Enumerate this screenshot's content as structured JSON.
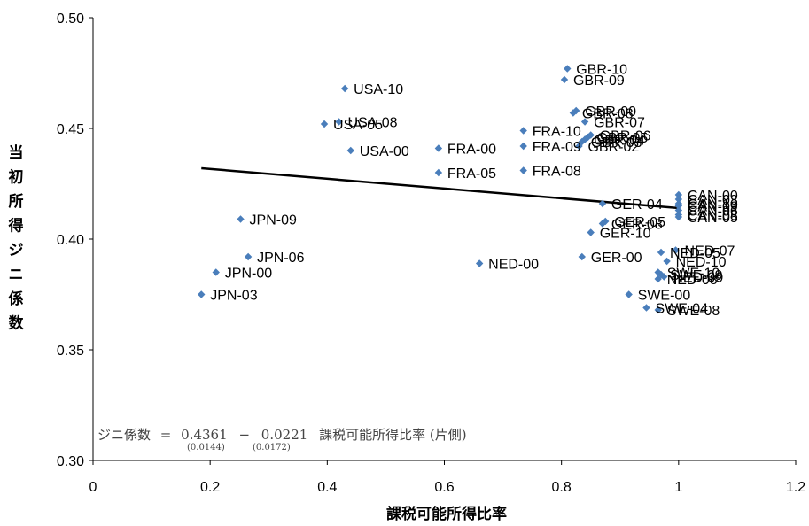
{
  "chart_data": {
    "type": "scatter",
    "xlabel": "課税可能所得比率",
    "ylabel": "当初所得ジニ係数",
    "xlim": [
      0,
      1.2
    ],
    "ylim": [
      0.3,
      0.5
    ],
    "x_ticks": [
      "0",
      "0.2",
      "0.4",
      "0.6",
      "0.8",
      "1",
      "1.2"
    ],
    "y_ticks": [
      "0.30",
      "0.35",
      "0.40",
      "0.45",
      "0.50"
    ],
    "grid": false,
    "marker_color": "#4a7ebb",
    "line_color": "#000000",
    "trendline": {
      "intercept": 0.4361,
      "slope": -0.0221,
      "x_range": [
        0.185,
        1.0
      ]
    },
    "equation": {
      "lhs": "ジニ係数",
      "eq": "=",
      "c0": "0.4361",
      "op": "−",
      "c1": "0.0221",
      "rhs": "課税可能所得比率 (片側)",
      "se0": "(0.0144)",
      "se1": "(0.0172)"
    },
    "points": [
      {
        "label": "GBR-10",
        "x": 0.81,
        "y": 0.477
      },
      {
        "label": "GBR-09",
        "x": 0.805,
        "y": 0.472
      },
      {
        "label": "USA-10",
        "x": 0.43,
        "y": 0.468
      },
      {
        "label": "USA-08",
        "x": 0.42,
        "y": 0.453
      },
      {
        "label": "USA-05",
        "x": 0.395,
        "y": 0.452
      },
      {
        "label": "USA-00",
        "x": 0.44,
        "y": 0.44
      },
      {
        "label": "GBR-00",
        "x": 0.825,
        "y": 0.458
      },
      {
        "label": "GBR-08",
        "x": 0.82,
        "y": 0.457
      },
      {
        "label": "GBR-07",
        "x": 0.84,
        "y": 0.453
      },
      {
        "label": "GBR-06",
        "x": 0.85,
        "y": 0.447
      },
      {
        "label": "GBR-05",
        "x": 0.845,
        "y": 0.446
      },
      {
        "label": "GBR-04",
        "x": 0.84,
        "y": 0.445
      },
      {
        "label": "GBR-03",
        "x": 0.835,
        "y": 0.444
      },
      {
        "label": "GBR-02",
        "x": 0.83,
        "y": 0.442
      },
      {
        "label": "FRA-10",
        "x": 0.735,
        "y": 0.449
      },
      {
        "label": "FRA-09",
        "x": 0.735,
        "y": 0.442
      },
      {
        "label": "FRA-00",
        "x": 0.59,
        "y": 0.441
      },
      {
        "label": "FRA-05",
        "x": 0.59,
        "y": 0.43
      },
      {
        "label": "FRA-08",
        "x": 0.735,
        "y": 0.431
      },
      {
        "label": "CAN-00",
        "x": 1.0,
        "y": 0.42
      },
      {
        "label": "CAN-03",
        "x": 1.0,
        "y": 0.418
      },
      {
        "label": "CAN-10",
        "x": 1.0,
        "y": 0.416
      },
      {
        "label": "CAN-09",
        "x": 1.0,
        "y": 0.415
      },
      {
        "label": "CAN-06",
        "x": 1.0,
        "y": 0.413
      },
      {
        "label": "CAN-08",
        "x": 1.0,
        "y": 0.411
      },
      {
        "label": "CAN-05",
        "x": 1.0,
        "y": 0.41
      },
      {
        "label": "GER-04",
        "x": 0.87,
        "y": 0.416
      },
      {
        "label": "GER-05",
        "x": 0.875,
        "y": 0.408
      },
      {
        "label": "GER-08",
        "x": 0.87,
        "y": 0.407
      },
      {
        "label": "GER-10",
        "x": 0.85,
        "y": 0.403
      },
      {
        "label": "GER-00",
        "x": 0.835,
        "y": 0.392
      },
      {
        "label": "NED-00",
        "x": 0.66,
        "y": 0.389
      },
      {
        "label": "NED-07",
        "x": 0.995,
        "y": 0.395
      },
      {
        "label": "NED-05",
        "x": 0.97,
        "y": 0.394
      },
      {
        "label": "NED-10",
        "x": 0.98,
        "y": 0.39
      },
      {
        "label": "SWE-10",
        "x": 0.965,
        "y": 0.385
      },
      {
        "label": "SWE-09",
        "x": 0.97,
        "y": 0.384
      },
      {
        "label": "NED-09",
        "x": 0.975,
        "y": 0.383
      },
      {
        "label": "NED-08",
        "x": 0.965,
        "y": 0.382
      },
      {
        "label": "SWE-00",
        "x": 0.915,
        "y": 0.375
      },
      {
        "label": "SWE-04",
        "x": 0.945,
        "y": 0.369
      },
      {
        "label": "SWE-08",
        "x": 0.965,
        "y": 0.368
      },
      {
        "label": "JPN-09",
        "x": 0.252,
        "y": 0.409
      },
      {
        "label": "JPN-06",
        "x": 0.265,
        "y": 0.392
      },
      {
        "label": "JPN-00",
        "x": 0.21,
        "y": 0.385
      },
      {
        "label": "JPN-03",
        "x": 0.185,
        "y": 0.375
      }
    ]
  }
}
